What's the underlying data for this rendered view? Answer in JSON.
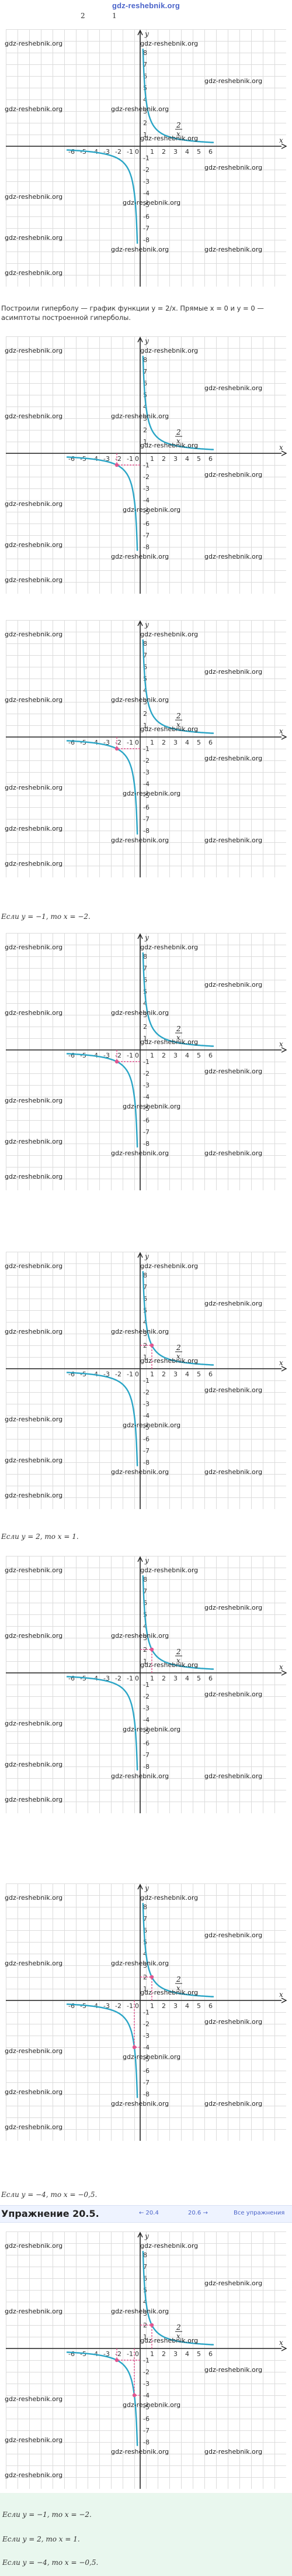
{
  "header": {
    "site": "gdz-reshebnik.org",
    "frac_left": "2",
    "frac_right": "1"
  },
  "watermark": "gdz-reshebnik.org",
  "axis": {
    "x_label": "x",
    "y_label": "y",
    "x_ticks": [
      "-6",
      "-5",
      "-4",
      "-3",
      "-2",
      "-1",
      "0",
      "1",
      "2",
      "3",
      "4",
      "5",
      "6"
    ],
    "y_ticks": [
      "8",
      "7",
      "6",
      "5",
      "4",
      "3",
      "2",
      "1",
      "-1",
      "-2",
      "-3",
      "-4",
      "-5",
      "-6",
      "-7",
      "-8"
    ]
  },
  "curve_label": {
    "numerator": "2",
    "denominator": "x"
  },
  "texts": {
    "intro_line1": "Построили гиперболу — график функции y = 2/x. Прямые x = 0 и y = 0 —",
    "intro_line2": "асимптоты построенной гиперболы.",
    "case_a": "Если y = −1, то x = −2.",
    "case_b": "Если y = 2, то x = 1.",
    "case_c": "Если y = −4, то x = −0,5."
  },
  "exercise": {
    "title": "Упражнение 20.5.",
    "prev": "← 20.4",
    "next": "20.6 →",
    "all": "Все упражнения"
  },
  "summary": {
    "line_a": "Если y = −1, то x = −2.",
    "line_b": "Если y = 2, то x = 1.",
    "line_c": "Если y = −4, то x = −0,5."
  },
  "chart_data": [
    {
      "type": "line",
      "function": "y = 2/x",
      "x_range": [
        -6,
        6
      ],
      "y_range": [
        -8,
        8
      ],
      "highlight": []
    },
    {
      "type": "line",
      "function": "y = 2/x",
      "x_range": [
        -6,
        6
      ],
      "y_range": [
        -8,
        8
      ],
      "highlight": [
        {
          "x": -2,
          "y": -1
        }
      ]
    },
    {
      "type": "line",
      "function": "y = 2/x",
      "x_range": [
        -6,
        6
      ],
      "y_range": [
        -8,
        8
      ],
      "highlight": [
        {
          "x": -2,
          "y": -1
        }
      ]
    },
    {
      "type": "line",
      "function": "y = 2/x",
      "x_range": [
        -6,
        6
      ],
      "y_range": [
        -8,
        8
      ],
      "highlight": [
        {
          "x": -2,
          "y": -1
        }
      ]
    },
    {
      "type": "line",
      "function": "y = 2/x",
      "x_range": [
        -6,
        6
      ],
      "y_range": [
        -8,
        8
      ],
      "highlight": [
        {
          "x": 1,
          "y": 2
        }
      ]
    },
    {
      "type": "line",
      "function": "y = 2/x",
      "x_range": [
        -6,
        6
      ],
      "y_range": [
        -8,
        8
      ],
      "highlight": [
        {
          "x": 1,
          "y": 2
        }
      ]
    },
    {
      "type": "line",
      "function": "y = 2/x",
      "x_range": [
        -6,
        6
      ],
      "y_range": [
        -8,
        8
      ],
      "highlight": [
        {
          "x": 1,
          "y": 2
        },
        {
          "x": -0.5,
          "y": -4
        }
      ]
    },
    {
      "type": "line",
      "function": "y = 2/x",
      "x_range": [
        -6,
        6
      ],
      "y_range": [
        -8,
        8
      ],
      "highlight": [
        {
          "x": -2,
          "y": -1
        },
        {
          "x": 1,
          "y": 2
        },
        {
          "x": -0.5,
          "y": -4
        }
      ]
    }
  ],
  "colors": {
    "curve": "#2aa5c6",
    "highlight": "#e0558f",
    "axis": "#222222",
    "link": "#4a63c9"
  }
}
